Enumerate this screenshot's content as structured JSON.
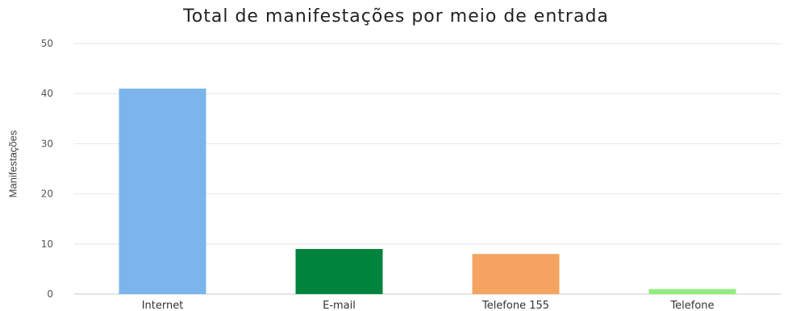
{
  "chart_data": {
    "type": "bar",
    "title": "Total de manifestações por meio de entrada",
    "xlabel": "",
    "ylabel": "Manifestações",
    "categories": [
      "Internet",
      "E-mail",
      "Telefone 155",
      "Telefone"
    ],
    "values": [
      41,
      9,
      8,
      1
    ],
    "colors": [
      "#7cb5ec",
      "#00843d",
      "#f4a460",
      "#90ee7e"
    ],
    "ylim": [
      0,
      50
    ],
    "yticks": [
      0,
      10,
      20,
      30,
      40,
      50
    ],
    "grid": true,
    "legend": "none"
  }
}
